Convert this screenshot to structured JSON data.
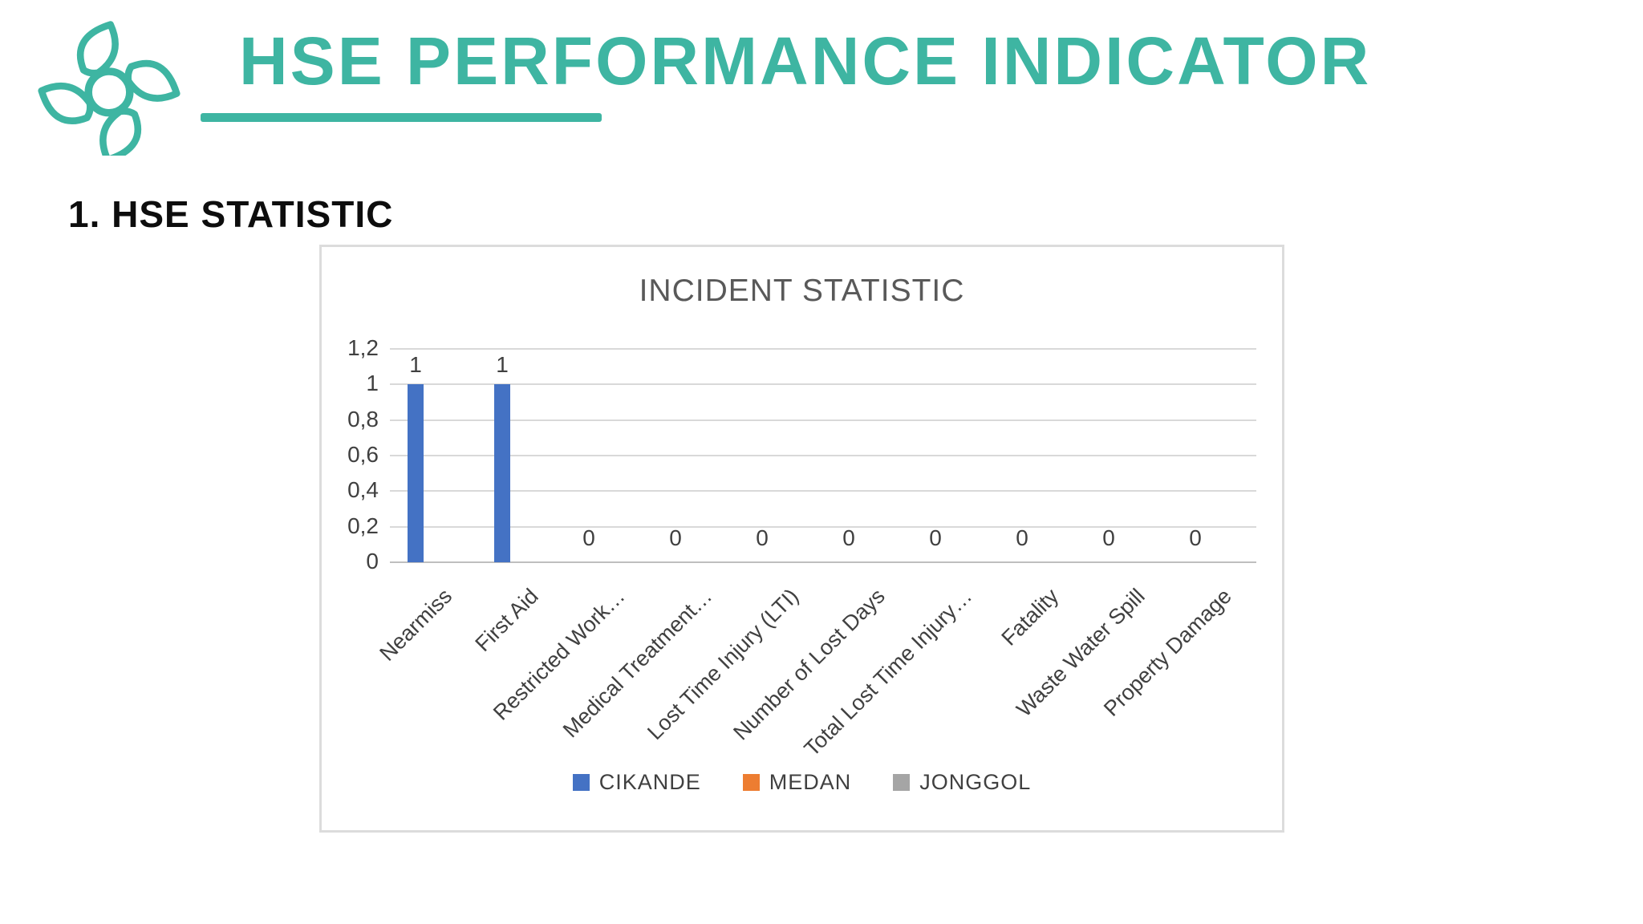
{
  "header": {
    "title": "HSE PERFORMANCE INDICATOR",
    "accent_color": "#3eb5a2"
  },
  "section": {
    "heading": "1. HSE STATISTIC"
  },
  "chart_data": {
    "type": "bar",
    "title": "INCIDENT STATISTIC",
    "categories": [
      "Nearmiss",
      "First Aid",
      "Restricted Work…",
      "Medical Treatment…",
      "Lost Time Injury (LTI)",
      "Number of Lost Days",
      "Total Lost Time Injury…",
      "Fatality",
      "Waste Water Spill",
      "Property Damage"
    ],
    "series": [
      {
        "name": "CIKANDE",
        "color": "#4472C4",
        "values": [
          1,
          1,
          0,
          0,
          0,
          0,
          0,
          0,
          0,
          0
        ],
        "data_labels": [
          "1",
          "1",
          "0",
          "0",
          "0",
          "0",
          "0",
          "0",
          "0",
          "0"
        ]
      },
      {
        "name": "MEDAN",
        "color": "#ED7D31",
        "values": [
          0,
          0,
          0,
          0,
          0,
          0,
          0,
          0,
          0,
          0
        ]
      },
      {
        "name": "JONGGOL",
        "color": "#A5A5A5",
        "values": [
          0,
          0,
          0,
          0,
          0,
          0,
          0,
          0,
          0,
          0
        ]
      }
    ],
    "ylim": [
      0,
      1.2
    ],
    "ytick_labels": [
      "1,2",
      "1",
      "0,8",
      "0,6",
      "0,4",
      "0,2",
      "0"
    ],
    "xlabel": "",
    "ylabel": "",
    "grid": true,
    "legend_position": "bottom",
    "colors": {
      "grid": "#d9d9d9",
      "axis_line": "#bfbfbf",
      "axis_text": "#404040",
      "title_text": "#595959",
      "border": "#dcdcdc"
    }
  }
}
